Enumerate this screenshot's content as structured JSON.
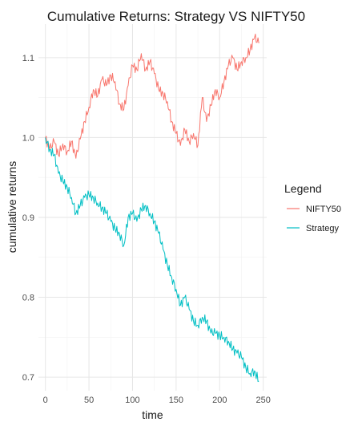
{
  "chart_data": {
    "type": "line",
    "title": "Cumulative Returns: Strategy VS NIFTY50",
    "xlabel": "time",
    "ylabel": "cumulative returns",
    "xlim": [
      -8,
      254
    ],
    "ylim": [
      0.683,
      1.142
    ],
    "x_ticks": [
      0,
      50,
      100,
      150,
      200,
      250
    ],
    "x_tick_labels": [
      "0",
      "50",
      "100",
      "150",
      "200",
      "250"
    ],
    "y_ticks": [
      0.7,
      0.8,
      0.9,
      1.0,
      1.1
    ],
    "y_tick_labels": [
      "0.7",
      "0.8",
      "0.9",
      "1.0",
      "1.1"
    ],
    "grid": true,
    "legend": {
      "title": "Legend",
      "position": "right",
      "entries": [
        "NIFTY50",
        "Strategy"
      ]
    },
    "series": [
      {
        "name": "NIFTY50",
        "color": "#F8766D",
        "points": [
          [
            0,
            1.0
          ],
          [
            5,
            0.985
          ],
          [
            10,
            0.995
          ],
          [
            15,
            0.978
          ],
          [
            20,
            0.992
          ],
          [
            25,
            0.982
          ],
          [
            30,
            0.995
          ],
          [
            35,
            0.974
          ],
          [
            40,
            0.998
          ],
          [
            45,
            1.02
          ],
          [
            50,
            1.038
          ],
          [
            55,
            1.06
          ],
          [
            60,
            1.052
          ],
          [
            65,
            1.073
          ],
          [
            70,
            1.065
          ],
          [
            75,
            1.078
          ],
          [
            80,
            1.07
          ],
          [
            85,
            1.042
          ],
          [
            90,
            1.035
          ],
          [
            95,
            1.065
          ],
          [
            100,
            1.09
          ],
          [
            105,
            1.085
          ],
          [
            110,
            1.105
          ],
          [
            115,
            1.085
          ],
          [
            120,
            1.095
          ],
          [
            125,
            1.08
          ],
          [
            130,
            1.06
          ],
          [
            135,
            1.055
          ],
          [
            140,
            1.045
          ],
          [
            145,
            1.02
          ],
          [
            150,
            1.005
          ],
          [
            155,
            0.99
          ],
          [
            160,
            1.01
          ],
          [
            165,
            0.995
          ],
          [
            170,
            1.005
          ],
          [
            175,
            0.99
          ],
          [
            180,
            1.05
          ],
          [
            185,
            1.02
          ],
          [
            190,
            1.04
          ],
          [
            195,
            1.06
          ],
          [
            200,
            1.05
          ],
          [
            205,
            1.07
          ],
          [
            210,
            1.09
          ],
          [
            215,
            1.1
          ],
          [
            220,
            1.085
          ],
          [
            225,
            1.095
          ],
          [
            230,
            1.1
          ],
          [
            235,
            1.11
          ],
          [
            240,
            1.125
          ],
          [
            245,
            1.118
          ]
        ]
      },
      {
        "name": "Strategy",
        "color": "#00BFC4",
        "points": [
          [
            0,
            1.0
          ],
          [
            5,
            0.985
          ],
          [
            10,
            0.978
          ],
          [
            15,
            0.955
          ],
          [
            20,
            0.945
          ],
          [
            25,
            0.938
          ],
          [
            30,
            0.925
          ],
          [
            35,
            0.905
          ],
          [
            40,
            0.915
          ],
          [
            45,
            0.925
          ],
          [
            50,
            0.928
          ],
          [
            55,
            0.925
          ],
          [
            60,
            0.918
          ],
          [
            65,
            0.912
          ],
          [
            70,
            0.905
          ],
          [
            75,
            0.895
          ],
          [
            80,
            0.885
          ],
          [
            85,
            0.88
          ],
          [
            90,
            0.865
          ],
          [
            95,
            0.9
          ],
          [
            100,
            0.905
          ],
          [
            105,
            0.895
          ],
          [
            110,
            0.91
          ],
          [
            115,
            0.915
          ],
          [
            120,
            0.905
          ],
          [
            125,
            0.895
          ],
          [
            130,
            0.88
          ],
          [
            135,
            0.86
          ],
          [
            140,
            0.84
          ],
          [
            145,
            0.825
          ],
          [
            150,
            0.81
          ],
          [
            155,
            0.79
          ],
          [
            160,
            0.8
          ],
          [
            165,
            0.785
          ],
          [
            170,
            0.77
          ],
          [
            175,
            0.765
          ],
          [
            180,
            0.775
          ],
          [
            185,
            0.77
          ],
          [
            190,
            0.755
          ],
          [
            195,
            0.755
          ],
          [
            200,
            0.752
          ],
          [
            205,
            0.75
          ],
          [
            210,
            0.745
          ],
          [
            215,
            0.735
          ],
          [
            220,
            0.73
          ],
          [
            225,
            0.725
          ],
          [
            230,
            0.712
          ],
          [
            235,
            0.705
          ],
          [
            240,
            0.708
          ],
          [
            245,
            0.695
          ]
        ]
      }
    ]
  }
}
